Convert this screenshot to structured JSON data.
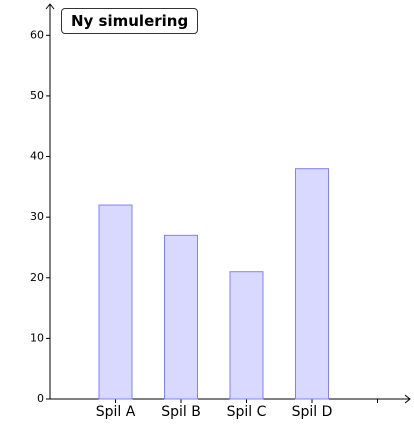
{
  "button": {
    "label": "Ny simulering"
  },
  "chart_data": {
    "type": "bar",
    "categories": [
      "Spil A",
      "Spil B",
      "Spil C",
      "Spil D"
    ],
    "values": [
      32,
      27,
      21,
      38
    ],
    "color": "#d9d9ff",
    "edge_color": "#8080ff",
    "ylim": [
      0,
      65
    ],
    "yticks": [
      0,
      10,
      20,
      30,
      40,
      50,
      60
    ]
  }
}
